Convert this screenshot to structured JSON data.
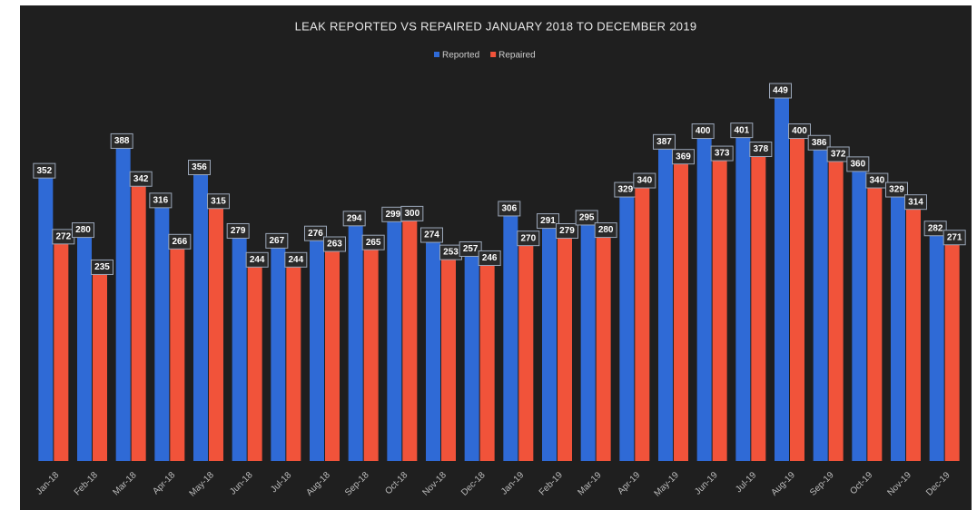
{
  "chart_data": {
    "type": "bar",
    "title": "LEAK REPORTED VS REPAIRED JANUARY 2018 TO DECEMBER 2019",
    "categories": [
      "Jan-18",
      "Feb-18",
      "Mar-18",
      "Apr-18",
      "May-18",
      "Jun-18",
      "Jul-18",
      "Aug-18",
      "Sep-18",
      "Oct-18",
      "Nov-18",
      "Dec-18",
      "Jan-19",
      "Feb-19",
      "Mar-19",
      "Apr-19",
      "May-19",
      "Jun-19",
      "Jul-19",
      "Aug-19",
      "Sep-19",
      "Oct-19",
      "Nov-19",
      "Dec-19"
    ],
    "series": [
      {
        "name": "Reported",
        "color": "#2f6ad6",
        "values": [
          352,
          280,
          388,
          316,
          356,
          279,
          267,
          276,
          294,
          299,
          274,
          257,
          306,
          291,
          295,
          329,
          387,
          400,
          401,
          449,
          386,
          360,
          329,
          282
        ]
      },
      {
        "name": "Repaired",
        "color": "#f1533a",
        "values": [
          272,
          235,
          342,
          266,
          315,
          244,
          244,
          263,
          265,
          300,
          253,
          246,
          270,
          279,
          280,
          340,
          369,
          373,
          378,
          400,
          372,
          340,
          314,
          271
        ]
      }
    ],
    "legend": "top"
  }
}
